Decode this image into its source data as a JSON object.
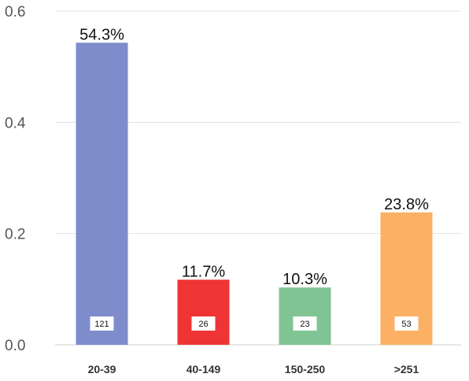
{
  "chart_data": {
    "type": "bar",
    "categories": [
      "20-39",
      "40-149",
      "150-250",
      ">251"
    ],
    "values": [
      0.543,
      0.117,
      0.103,
      0.238
    ],
    "percent_labels": [
      "54.3%",
      "11.7%",
      "10.3%",
      "23.8%"
    ],
    "counts": [
      "121",
      "26",
      "23",
      "53"
    ],
    "colors": [
      "#7f8ccc",
      "#ee3434",
      "#80c493",
      "#fcb063"
    ],
    "ylim": [
      0,
      0.6
    ],
    "yticks": [
      "0.0",
      "0.2",
      "0.4",
      "0.6"
    ],
    "ytick_values": [
      0,
      0.2,
      0.4,
      0.6
    ],
    "grid": true,
    "title": "",
    "xlabel": "",
    "ylabel": ""
  }
}
